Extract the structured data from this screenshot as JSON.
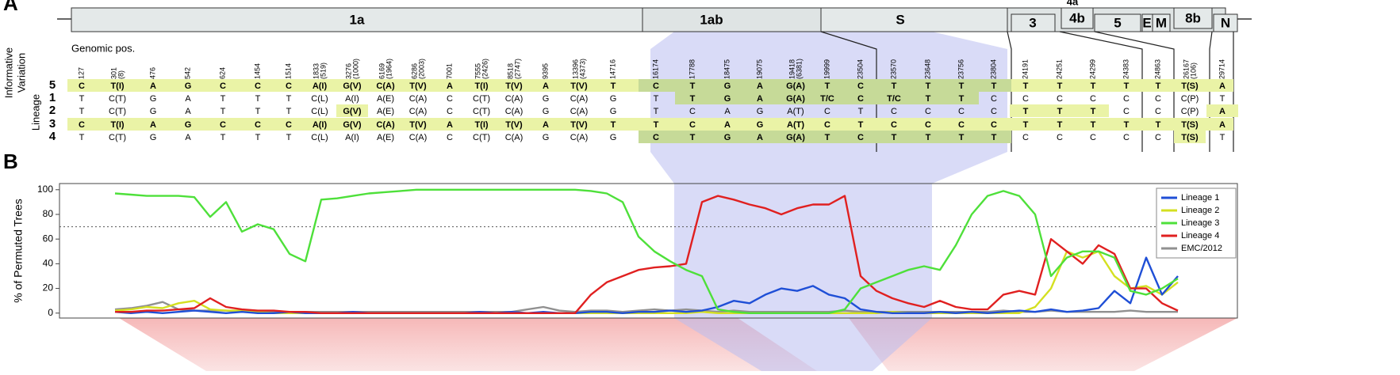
{
  "panel_a": {
    "label": "A",
    "genes": [
      "1a",
      "1ab",
      "S",
      "3",
      "4a",
      "4b",
      "5",
      "E",
      "M",
      "8b",
      "N"
    ],
    "genomic_pos_label": "Genomic pos.",
    "side_label_1": "Informative",
    "side_label_2": "Variation",
    "side_label_3": "Lineage",
    "positions": [
      {
        "nt": "127"
      },
      {
        "nt": "301",
        "aa": "(8)"
      },
      {
        "nt": "476"
      },
      {
        "nt": "542"
      },
      {
        "nt": "624"
      },
      {
        "nt": "1454"
      },
      {
        "nt": "1514"
      },
      {
        "nt": "1833",
        "aa": "(519)"
      },
      {
        "nt": "3276",
        "aa": "(1000)"
      },
      {
        "nt": "6169",
        "aa": "(1964)"
      },
      {
        "nt": "6286",
        "aa": "(2003)"
      },
      {
        "nt": "7001"
      },
      {
        "nt": "7555",
        "aa": "(2426)"
      },
      {
        "nt": "8518",
        "aa": "(2747)"
      },
      {
        "nt": "9395"
      },
      {
        "nt": "13396",
        "aa": "(4373)"
      },
      {
        "nt": "14716"
      },
      {
        "nt": "16174"
      },
      {
        "nt": "17788"
      },
      {
        "nt": "18475"
      },
      {
        "nt": "19075"
      },
      {
        "nt": "19418",
        "aa": "(6381)"
      },
      {
        "nt": "19999"
      },
      {
        "nt": "23504"
      },
      {
        "nt": "23570"
      },
      {
        "nt": "23648"
      },
      {
        "nt": "23756"
      },
      {
        "nt": "23804"
      },
      {
        "nt": "24191"
      },
      {
        "nt": "24251"
      },
      {
        "nt": "24299"
      },
      {
        "nt": "24383"
      },
      {
        "nt": "24863"
      },
      {
        "nt": "26167",
        "aa": "(106)"
      },
      {
        "nt": "29714"
      }
    ],
    "rows": [
      {
        "lineage": "5",
        "cells": [
          "C",
          "T(I)",
          "A",
          "G",
          "C",
          "C",
          "C",
          "A(I)",
          "G(V)",
          "C(A)",
          "T(V)",
          "A",
          "T(I)",
          "T(V)",
          "A",
          "T(V)",
          "T",
          "C",
          "T",
          "G",
          "A",
          "G(A)",
          "T",
          "C",
          "T",
          "T",
          "T",
          "T",
          "T",
          "T",
          "T",
          "T",
          "T",
          "T(S)",
          "A"
        ]
      },
      {
        "lineage": "1",
        "cells": [
          "T",
          "C(T)",
          "G",
          "A",
          "T",
          "T",
          "T",
          "C(L)",
          "A(I)",
          "A(E)",
          "C(A)",
          "C",
          "C(T)",
          "C(A)",
          "G",
          "C(A)",
          "G",
          "T",
          "T",
          "G",
          "A",
          "G(A)",
          "T/C",
          "C",
          "T/C",
          "T",
          "T",
          "C",
          "C",
          "C",
          "C",
          "C",
          "C",
          "C(P)",
          "T"
        ]
      },
      {
        "lineage": "2",
        "cells": [
          "T",
          "C(T)",
          "G",
          "A",
          "T",
          "T",
          "T",
          "C(L)",
          "G(V)",
          "A(E)",
          "C(A)",
          "C",
          "C(T)",
          "C(A)",
          "G",
          "C(A)",
          "G",
          "T",
          "C",
          "A",
          "G",
          "A(T)",
          "C",
          "T",
          "C",
          "C",
          "C",
          "C",
          "T",
          "T",
          "T",
          "C",
          "C",
          "C(P)",
          "A"
        ]
      },
      {
        "lineage": "3",
        "cells": [
          "C",
          "T(I)",
          "A",
          "G",
          "C",
          "C",
          "C",
          "A(I)",
          "G(V)",
          "C(A)",
          "T(V)",
          "A",
          "T(I)",
          "T(V)",
          "A",
          "T(V)",
          "T",
          "T",
          "C",
          "A",
          "G",
          "A(T)",
          "C",
          "T",
          "C",
          "C",
          "C",
          "C",
          "T",
          "T",
          "T",
          "T",
          "T",
          "T(S)",
          "A"
        ]
      },
      {
        "lineage": "4",
        "cells": [
          "T",
          "C(T)",
          "G",
          "A",
          "T",
          "T",
          "T",
          "C(L)",
          "A(I)",
          "A(E)",
          "C(A)",
          "C",
          "C(T)",
          "C(A)",
          "G",
          "C(A)",
          "G",
          "C",
          "T",
          "G",
          "A",
          "G(A)",
          "T",
          "C",
          "T",
          "T",
          "T",
          "T",
          "C",
          "C",
          "C",
          "C",
          "C",
          "T(S)",
          "T"
        ]
      }
    ]
  },
  "panel_b": {
    "label": "B"
  },
  "chart_data": {
    "type": "line",
    "y_label": "% of Permuted Trees",
    "categories": [
      null,
      null,
      null,
      null,
      null,
      null,
      null,
      null,
      null,
      null,
      null,
      null,
      null,
      null,
      null,
      null,
      null,
      null,
      null,
      null,
      null,
      null,
      null,
      null,
      null,
      null,
      null,
      null,
      null,
      null,
      null,
      null,
      null,
      null,
      null,
      null,
      null,
      null,
      null,
      null,
      null,
      null,
      null,
      null,
      null,
      null,
      null,
      null,
      null,
      null,
      null,
      null,
      null,
      null,
      null,
      null,
      null,
      null,
      null,
      null,
      null,
      null,
      null,
      null,
      null,
      null,
      null,
      null
    ],
    "ylim": [
      -4,
      105
    ],
    "yticks": [
      0,
      20,
      40,
      60,
      80,
      100
    ],
    "threshold": 70,
    "legend": "upper right",
    "series": [
      {
        "name": "Lineage 1",
        "color": "#1f4fd6",
        "values": [
          1,
          0,
          1,
          0,
          1,
          2,
          1,
          0,
          1,
          0,
          0,
          1,
          0,
          0,
          0,
          1,
          0,
          0,
          0,
          0,
          0,
          0,
          0,
          1,
          0,
          1,
          0,
          1,
          0,
          0,
          1,
          1,
          0,
          1,
          1,
          2,
          1,
          2,
          5,
          10,
          8,
          15,
          20,
          18,
          22,
          15,
          12,
          3,
          1,
          0,
          0,
          0,
          1,
          0,
          1,
          0,
          1,
          2,
          1,
          3,
          1,
          2,
          4,
          18,
          8,
          45,
          15,
          30
        ]
      },
      {
        "name": "Lineage 2",
        "color": "#d4e021",
        "values": [
          2,
          3,
          5,
          4,
          8,
          10,
          3,
          2,
          2,
          1,
          0,
          0,
          0,
          0,
          0,
          0,
          0,
          0,
          0,
          0,
          0,
          0,
          0,
          0,
          0,
          0,
          0,
          0,
          0,
          0,
          0,
          0,
          0,
          0,
          0,
          0,
          0,
          1,
          0,
          0,
          0,
          0,
          0,
          0,
          0,
          0,
          0,
          0,
          0,
          1,
          0,
          0,
          0,
          0,
          0,
          0,
          0,
          0,
          5,
          20,
          50,
          45,
          50,
          30,
          20,
          22,
          15,
          25
        ]
      },
      {
        "name": "Lineage 3",
        "color": "#4ee03a",
        "values": [
          97,
          96,
          95,
          95,
          95,
          94,
          78,
          90,
          66,
          72,
          68,
          48,
          42,
          92,
          93,
          95,
          97,
          98,
          99,
          100,
          100,
          100,
          100,
          100,
          100,
          100,
          100,
          100,
          100,
          100,
          99,
          97,
          90,
          62,
          50,
          42,
          35,
          30,
          3,
          1,
          0,
          0,
          0,
          0,
          0,
          0,
          3,
          20,
          25,
          30,
          35,
          38,
          35,
          55,
          80,
          95,
          99,
          95,
          80,
          30,
          45,
          50,
          50,
          45,
          18,
          15,
          20,
          28
        ]
      },
      {
        "name": "Lineage 4",
        "color": "#e02020",
        "values": [
          1,
          1,
          2,
          2,
          3,
          4,
          12,
          5,
          3,
          2,
          2,
          1,
          1,
          0,
          0,
          0,
          0,
          0,
          0,
          0,
          0,
          0,
          0,
          0,
          0,
          0,
          0,
          0,
          0,
          0,
          15,
          25,
          30,
          35,
          37,
          38,
          40,
          90,
          95,
          92,
          88,
          85,
          80,
          85,
          88,
          88,
          95,
          30,
          18,
          12,
          8,
          5,
          10,
          5,
          3,
          3,
          15,
          18,
          15,
          60,
          50,
          40,
          55,
          48,
          20,
          20,
          8,
          2
        ]
      },
      {
        "name": "EMC/2012",
        "color": "#909090",
        "values": [
          3,
          4,
          6,
          9,
          3,
          2,
          2,
          2,
          1,
          1,
          1,
          1,
          1,
          1,
          1,
          1,
          1,
          1,
          1,
          1,
          1,
          1,
          1,
          1,
          1,
          1,
          3,
          5,
          2,
          1,
          2,
          2,
          1,
          2,
          3,
          2,
          3,
          2,
          1,
          2,
          1,
          1,
          1,
          1,
          1,
          1,
          2,
          1,
          1,
          1,
          1,
          1,
          1,
          1,
          1,
          1,
          2,
          1,
          1,
          2,
          1,
          1,
          1,
          1,
          2,
          1,
          1,
          1
        ]
      }
    ]
  }
}
